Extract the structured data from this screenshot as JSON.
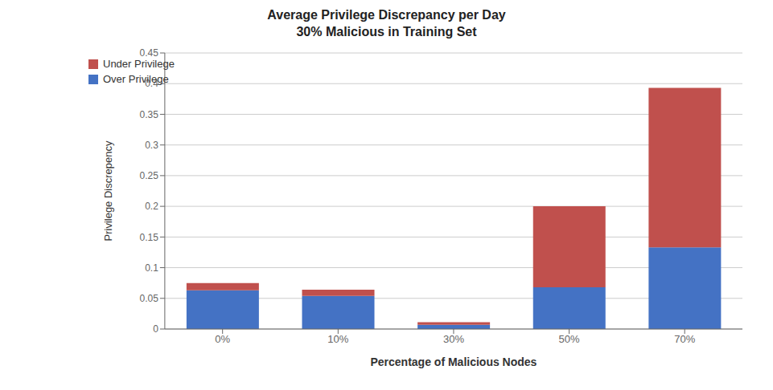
{
  "chart_data": {
    "type": "bar",
    "title": "Average Privilege Discrepancy per Day",
    "subtitle": "30% Malicious in Training Set",
    "xlabel": "Percentage of Malicious Nodes",
    "ylabel": "Privilege Discrepency",
    "categories": [
      "0%",
      "10%",
      "30%",
      "50%",
      "70%"
    ],
    "series": [
      {
        "name": "Over Privilege",
        "color": "#4472C4",
        "values": [
          0.063,
          0.054,
          0.007,
          0.068,
          0.133
        ]
      },
      {
        "name": "Under Privilege",
        "color": "#C0504D",
        "values": [
          0.012,
          0.01,
          0.004,
          0.132,
          0.26
        ]
      }
    ],
    "stacked": true,
    "ylim": [
      0,
      0.45
    ],
    "yticks": [
      0,
      0.05,
      0.1,
      0.15,
      0.2,
      0.25,
      0.3,
      0.35,
      0.4,
      0.45
    ],
    "grid": true,
    "legend": "upper left"
  }
}
